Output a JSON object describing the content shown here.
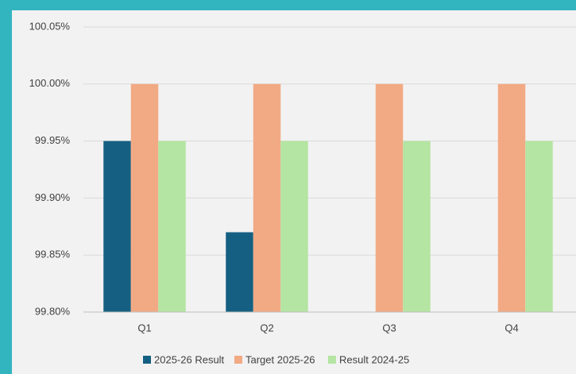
{
  "chart_data": {
    "type": "bar",
    "categories": [
      "Q1",
      "Q2",
      "Q3",
      "Q4"
    ],
    "series": [
      {
        "name": "2025-26 Result",
        "color": "#156082",
        "values": [
          99.95,
          99.87,
          null,
          null
        ]
      },
      {
        "name": "Target 2025-26",
        "color": "#f2aa84",
        "values": [
          100.0,
          100.0,
          100.0,
          100.0
        ]
      },
      {
        "name": "Result 2024-25",
        "color": "#b4e5a2",
        "values": [
          99.95,
          99.95,
          99.95,
          99.95
        ]
      }
    ],
    "ylim": [
      99.8,
      100.05
    ],
    "yticks": [
      {
        "value": 99.8,
        "label": "99.80%"
      },
      {
        "value": 99.85,
        "label": "99.85%"
      },
      {
        "value": 99.9,
        "label": "99.90%"
      },
      {
        "value": 99.95,
        "label": "99.95%"
      },
      {
        "value": 100.0,
        "label": "100.00%"
      },
      {
        "value": 100.05,
        "label": "100.05%"
      }
    ],
    "grid": true,
    "legend": "bottom"
  }
}
